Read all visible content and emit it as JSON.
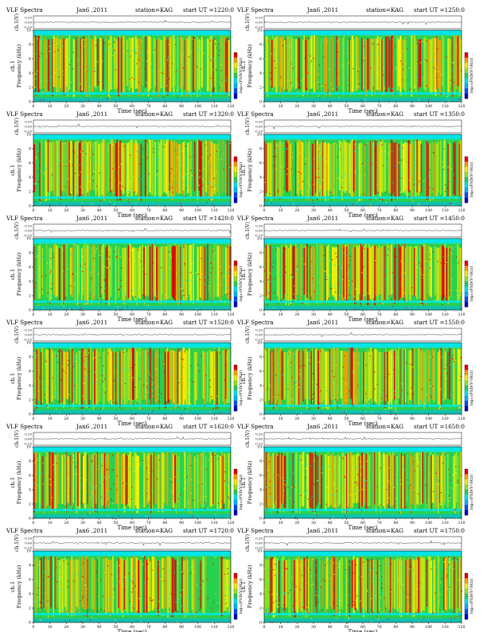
{
  "page": {
    "colorbar_colors": [
      "#0000c8",
      "#0050ff",
      "#00b4ff",
      "#00e6e6",
      "#28d050",
      "#9be61e",
      "#fff000",
      "#ffa000",
      "#e60000"
    ]
  },
  "labels": {
    "title": "VLF Spectra",
    "date": "Jan6 ,2011",
    "station": "station=KAG",
    "start_prefix": "start  UT =",
    "waveform_ylabel": "ch.1(V)",
    "spec_ylabel": "Frequency (kHz)",
    "spec_ylabel_ch": "ch.1",
    "xlabel": "Time (sec)",
    "colorbar_label": "log₁₀(PSD(V²/Hz))"
  },
  "chart_data": [
    {
      "type": "heatmap",
      "title": "VLF Spectra",
      "date": "Jan6 ,2011",
      "station": "station=KAG",
      "start_ut": "1220:0",
      "xlabel": "Time (sec)",
      "ylabel": "Frequency (kHz)",
      "xlim": [
        0,
        120
      ],
      "ylim": [
        0,
        10
      ],
      "x_ticks": [
        "0",
        "10",
        "20",
        "30",
        "40",
        "50",
        "60",
        "70",
        "80",
        "90",
        "100",
        "110",
        "120"
      ],
      "y_ticks": [
        "0",
        "2",
        "4",
        "6",
        "8",
        "10"
      ],
      "waveform_ticks": [
        "0.20",
        "0.00",
        "-0.20"
      ],
      "waveform_ylabel": "ch.1(V)",
      "colorbar_label": "log₁₀(PSD(V²/Hz))"
    },
    {
      "type": "heatmap",
      "title": "VLF Spectra",
      "date": "Jan6 ,2011",
      "station": "station=KAG",
      "start_ut": "1250:0",
      "xlabel": "Time (sec)",
      "ylabel": "Frequency (kHz)",
      "xlim": [
        0,
        120
      ],
      "ylim": [
        0,
        10
      ],
      "x_ticks": [
        "0",
        "10",
        "20",
        "30",
        "40",
        "50",
        "60",
        "70",
        "80",
        "90",
        "100",
        "110",
        "120"
      ],
      "y_ticks": [
        "0",
        "2",
        "4",
        "6",
        "8",
        "10"
      ],
      "waveform_ticks": [
        "0.20",
        "0.00",
        "-0.20"
      ],
      "waveform_ylabel": "ch.1(V)",
      "colorbar_label": "log₁₀(PSD(V²/Hz))"
    },
    {
      "type": "heatmap",
      "title": "VLF Spectra",
      "date": "Jan6 ,2011",
      "station": "station=KAG",
      "start_ut": "1320:0",
      "xlabel": "Time (sec)",
      "ylabel": "Frequency (kHz)",
      "xlim": [
        0,
        120
      ],
      "ylim": [
        0,
        10
      ],
      "x_ticks": [
        "0",
        "10",
        "20",
        "30",
        "40",
        "50",
        "60",
        "70",
        "80",
        "90",
        "100",
        "110",
        "120"
      ],
      "y_ticks": [
        "0",
        "2",
        "4",
        "6",
        "8",
        "10"
      ],
      "waveform_ticks": [
        "0.20",
        "0.00",
        "-0.20"
      ],
      "waveform_ylabel": "ch.1(V)",
      "colorbar_label": "log₁₀(PSD(V²/Hz))"
    },
    {
      "type": "heatmap",
      "title": "VLF Spectra",
      "date": "Jan6 ,2011",
      "station": "station=KAG",
      "start_ut": "1350:0",
      "xlabel": "Time (sec)",
      "ylabel": "Frequency (kHz)",
      "xlim": [
        0,
        120
      ],
      "ylim": [
        0,
        10
      ],
      "x_ticks": [
        "0",
        "10",
        "20",
        "30",
        "40",
        "50",
        "60",
        "70",
        "80",
        "90",
        "100",
        "110",
        "120"
      ],
      "y_ticks": [
        "0",
        "2",
        "4",
        "6",
        "8",
        "10"
      ],
      "waveform_ticks": [
        "0.20",
        "0.00",
        "-0.20"
      ],
      "waveform_ylabel": "ch.1(V)",
      "colorbar_label": "log₁₀(PSD(V²/Hz))"
    },
    {
      "type": "heatmap",
      "title": "VLF Spectra",
      "date": "Jan6 ,2011",
      "station": "station=KAG",
      "start_ut": "1420:0",
      "xlabel": "Time (sec)",
      "ylabel": "Frequency (kHz)",
      "xlim": [
        0,
        120
      ],
      "ylim": [
        0,
        10
      ],
      "x_ticks": [
        "0",
        "10",
        "20",
        "30",
        "40",
        "50",
        "60",
        "70",
        "80",
        "90",
        "100",
        "110",
        "120"
      ],
      "y_ticks": [
        "0",
        "2",
        "4",
        "6",
        "8",
        "10"
      ],
      "waveform_ticks": [
        "0.20",
        "0.00",
        "-0.20"
      ],
      "waveform_ylabel": "ch.1(V)",
      "colorbar_label": "log₁₀(PSD(V²/Hz))"
    },
    {
      "type": "heatmap",
      "title": "VLF Spectra",
      "date": "Jan6 ,2011",
      "station": "station=KAG",
      "start_ut": "1450:0",
      "xlabel": "Time (sec)",
      "ylabel": "Frequency (kHz)",
      "xlim": [
        0,
        120
      ],
      "ylim": [
        0,
        10
      ],
      "x_ticks": [
        "0",
        "10",
        "20",
        "30",
        "40",
        "50",
        "60",
        "70",
        "80",
        "90",
        "100",
        "110",
        "120"
      ],
      "y_ticks": [
        "0",
        "2",
        "4",
        "6",
        "8",
        "10"
      ],
      "waveform_ticks": [
        "0.20",
        "0.00",
        "-0.20"
      ],
      "waveform_ylabel": "ch.1(V)",
      "colorbar_label": "log₁₀(PSD(V²/Hz))"
    },
    {
      "type": "heatmap",
      "title": "VLF Spectra",
      "date": "Jan6 ,2011",
      "station": "station=KAG",
      "start_ut": "1520:0",
      "xlabel": "Time (sec)",
      "ylabel": "Frequency (kHz)",
      "xlim": [
        0,
        120
      ],
      "ylim": [
        0,
        10
      ],
      "x_ticks": [
        "0",
        "10",
        "20",
        "30",
        "40",
        "50",
        "60",
        "70",
        "80",
        "90",
        "100",
        "110",
        "120"
      ],
      "y_ticks": [
        "0",
        "2",
        "4",
        "6",
        "8",
        "10"
      ],
      "waveform_ticks": [
        "0.20",
        "0.00",
        "-0.20"
      ],
      "waveform_ylabel": "ch.1(V)",
      "colorbar_label": "log₁₀(PSD(V²/Hz))"
    },
    {
      "type": "heatmap",
      "title": "VLF Spectra",
      "date": "Jan6 ,2011",
      "station": "station=KAG",
      "start_ut": "1550:0",
      "xlabel": "Time (sec)",
      "ylabel": "Frequency (kHz)",
      "xlim": [
        0,
        120
      ],
      "ylim": [
        0,
        10
      ],
      "x_ticks": [
        "0",
        "10",
        "20",
        "30",
        "40",
        "50",
        "60",
        "70",
        "80",
        "90",
        "100",
        "110",
        "120"
      ],
      "y_ticks": [
        "0",
        "2",
        "4",
        "6",
        "8",
        "10"
      ],
      "waveform_ticks": [
        "0.20",
        "0.00",
        "-0.20"
      ],
      "waveform_ylabel": "ch.1(V)",
      "colorbar_label": "log₁₀(PSD(V²/Hz))"
    },
    {
      "type": "heatmap",
      "title": "VLF Spectra",
      "date": "Jan6 ,2011",
      "station": "station=KAG",
      "start_ut": "1620:0",
      "xlabel": "Time (sec)",
      "ylabel": "Frequency (kHz)",
      "xlim": [
        0,
        120
      ],
      "ylim": [
        0,
        10
      ],
      "x_ticks": [
        "0",
        "10",
        "20",
        "30",
        "40",
        "50",
        "60",
        "70",
        "80",
        "90",
        "100",
        "110",
        "120"
      ],
      "y_ticks": [
        "0",
        "2",
        "4",
        "6",
        "8",
        "10"
      ],
      "waveform_ticks": [
        "0.20",
        "0.00",
        "-0.20"
      ],
      "waveform_ylabel": "ch.1(V)",
      "colorbar_label": "log₁₀(PSD(V²/Hz))"
    },
    {
      "type": "heatmap",
      "title": "VLF Spectra",
      "date": "Jan6 ,2011",
      "station": "station=KAG",
      "start_ut": "1650:0",
      "xlabel": "Time (sec)",
      "ylabel": "Frequency (kHz)",
      "xlim": [
        0,
        120
      ],
      "ylim": [
        0,
        10
      ],
      "x_ticks": [
        "0",
        "10",
        "20",
        "30",
        "40",
        "50",
        "60",
        "70",
        "80",
        "90",
        "100",
        "110",
        "120"
      ],
      "y_ticks": [
        "0",
        "2",
        "4",
        "6",
        "8",
        "10"
      ],
      "waveform_ticks": [
        "0.20",
        "0.00",
        "-0.20"
      ],
      "waveform_ylabel": "ch.1(V)",
      "colorbar_label": "log₁₀(PSD(V²/Hz))"
    },
    {
      "type": "heatmap",
      "title": "VLF Spectra",
      "date": "Jan6 ,2011",
      "station": "station=KAG",
      "start_ut": "1720:0",
      "xlabel": "Time (sec)",
      "ylabel": "Frequency (kHz)",
      "xlim": [
        0,
        120
      ],
      "ylim": [
        0,
        10
      ],
      "x_ticks": [
        "0",
        "10",
        "20",
        "30",
        "40",
        "50",
        "60",
        "70",
        "80",
        "90",
        "100",
        "110",
        "120"
      ],
      "y_ticks": [
        "0",
        "2",
        "4",
        "6",
        "8",
        "10"
      ],
      "waveform_ticks": [
        "0.20",
        "0.00",
        "-0.20"
      ],
      "waveform_ylabel": "ch.1(V)",
      "colorbar_label": "log₁₀(PSD(V²/Hz))"
    },
    {
      "type": "heatmap",
      "title": "VLF Spectra",
      "date": "Jan6 ,2011",
      "station": "station=KAG",
      "start_ut": "1750:0",
      "xlabel": "Time (sec)",
      "ylabel": "Frequency (kHz)",
      "xlim": [
        0,
        120
      ],
      "ylim": [
        0,
        10
      ],
      "x_ticks": [
        "0",
        "10",
        "20",
        "30",
        "40",
        "50",
        "60",
        "70",
        "80",
        "90",
        "100",
        "110",
        "120"
      ],
      "y_ticks": [
        "0",
        "2",
        "4",
        "6",
        "8",
        "10"
      ],
      "waveform_ticks": [
        "0.20",
        "0.00",
        "-0.20"
      ],
      "waveform_ylabel": "ch.1(V)",
      "colorbar_label": "log₁₀(PSD(V²/Hz))"
    }
  ]
}
